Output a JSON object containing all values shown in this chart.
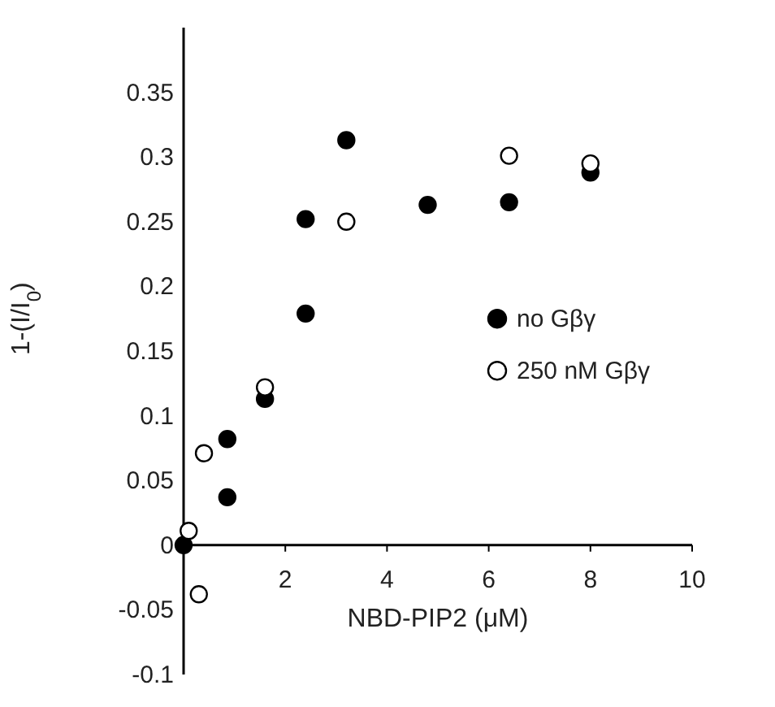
{
  "chart_data": {
    "type": "scatter",
    "xlabel": "NBD-PIP2 (μM)",
    "ylabel": "1-(I/I$_{0}$)",
    "xlim": [
      0,
      10
    ],
    "xticks": [
      2,
      4,
      6,
      8,
      10
    ],
    "ylim": [
      -0.1,
      0.4
    ],
    "yticks": [
      -0.1,
      -0.05,
      0,
      0.05,
      0.1,
      0.15,
      0.2,
      0.25,
      0.3,
      0.35
    ],
    "grid": false,
    "legend": "right",
    "marker": "circle",
    "series": [
      {
        "name": "no Gβγ",
        "color": "#000000",
        "x": [
          0,
          0.86,
          0.86,
          1.6,
          2.4,
          2.4,
          3.2,
          4.8,
          6.4,
          8.0
        ],
        "values": [
          0,
          0.037,
          0.082,
          0.113,
          0.179,
          0.252,
          0.313,
          0.263,
          0.265,
          0.288
        ]
      },
      {
        "name": "250 nM Gβγ",
        "color": "#ffffff",
        "x": [
          0.1,
          0.3,
          0.4,
          1.6,
          3.2,
          6.4,
          8.0
        ],
        "values": [
          0.011,
          -0.038,
          0.071,
          0.122,
          0.25,
          0.301,
          0.295
        ]
      }
    ]
  }
}
